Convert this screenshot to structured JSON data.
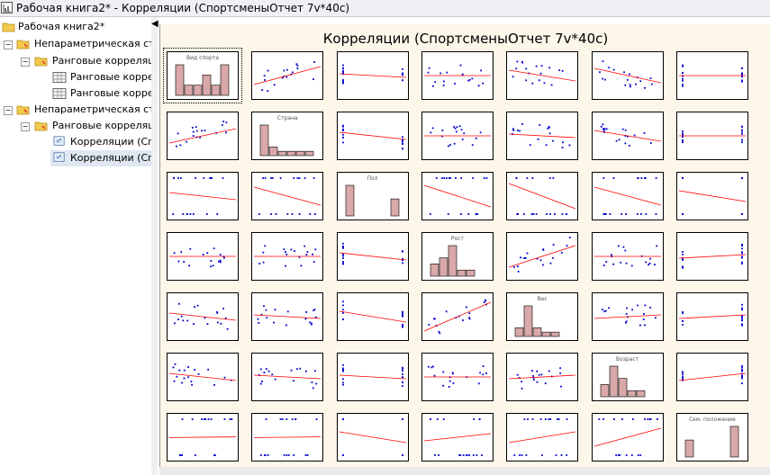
{
  "window": {
    "title": "Рабочая книга2* - Корреляции (СпортсменыОтчет 7v*40c)"
  },
  "tree": {
    "items": [
      {
        "label": "Рабочая книга2*",
        "type": "workbook"
      },
      {
        "label": "Непараметрическая ста",
        "type": "folder"
      },
      {
        "label": "Ранговые корреляц",
        "type": "folder"
      },
      {
        "label": "Ранговые корреля",
        "type": "table"
      },
      {
        "label": "Ранговые корреля",
        "type": "table"
      },
      {
        "label": "Непараметрическая ста",
        "type": "folder"
      },
      {
        "label": "Ранговые корреляц",
        "type": "folder"
      },
      {
        "label": "Корреляции (Спор",
        "type": "graph"
      },
      {
        "label": "Корреляции (Спор",
        "type": "graph",
        "selected": true
      }
    ],
    "collapse_icon": "chevron-left-icon"
  },
  "matrix": {
    "title": "Корреляции (СпортсменыОтчет 7v*40c)",
    "variables": [
      "Вид спорта",
      "Страна",
      "Пол",
      "Рост",
      "Вес",
      "Возраст",
      "Сем. положение"
    ]
  },
  "colors": {
    "points": "#0000cc",
    "fit_line": "#ff0000",
    "hist_fill": "#d9a8a8",
    "background": "#fcf7e9"
  }
}
